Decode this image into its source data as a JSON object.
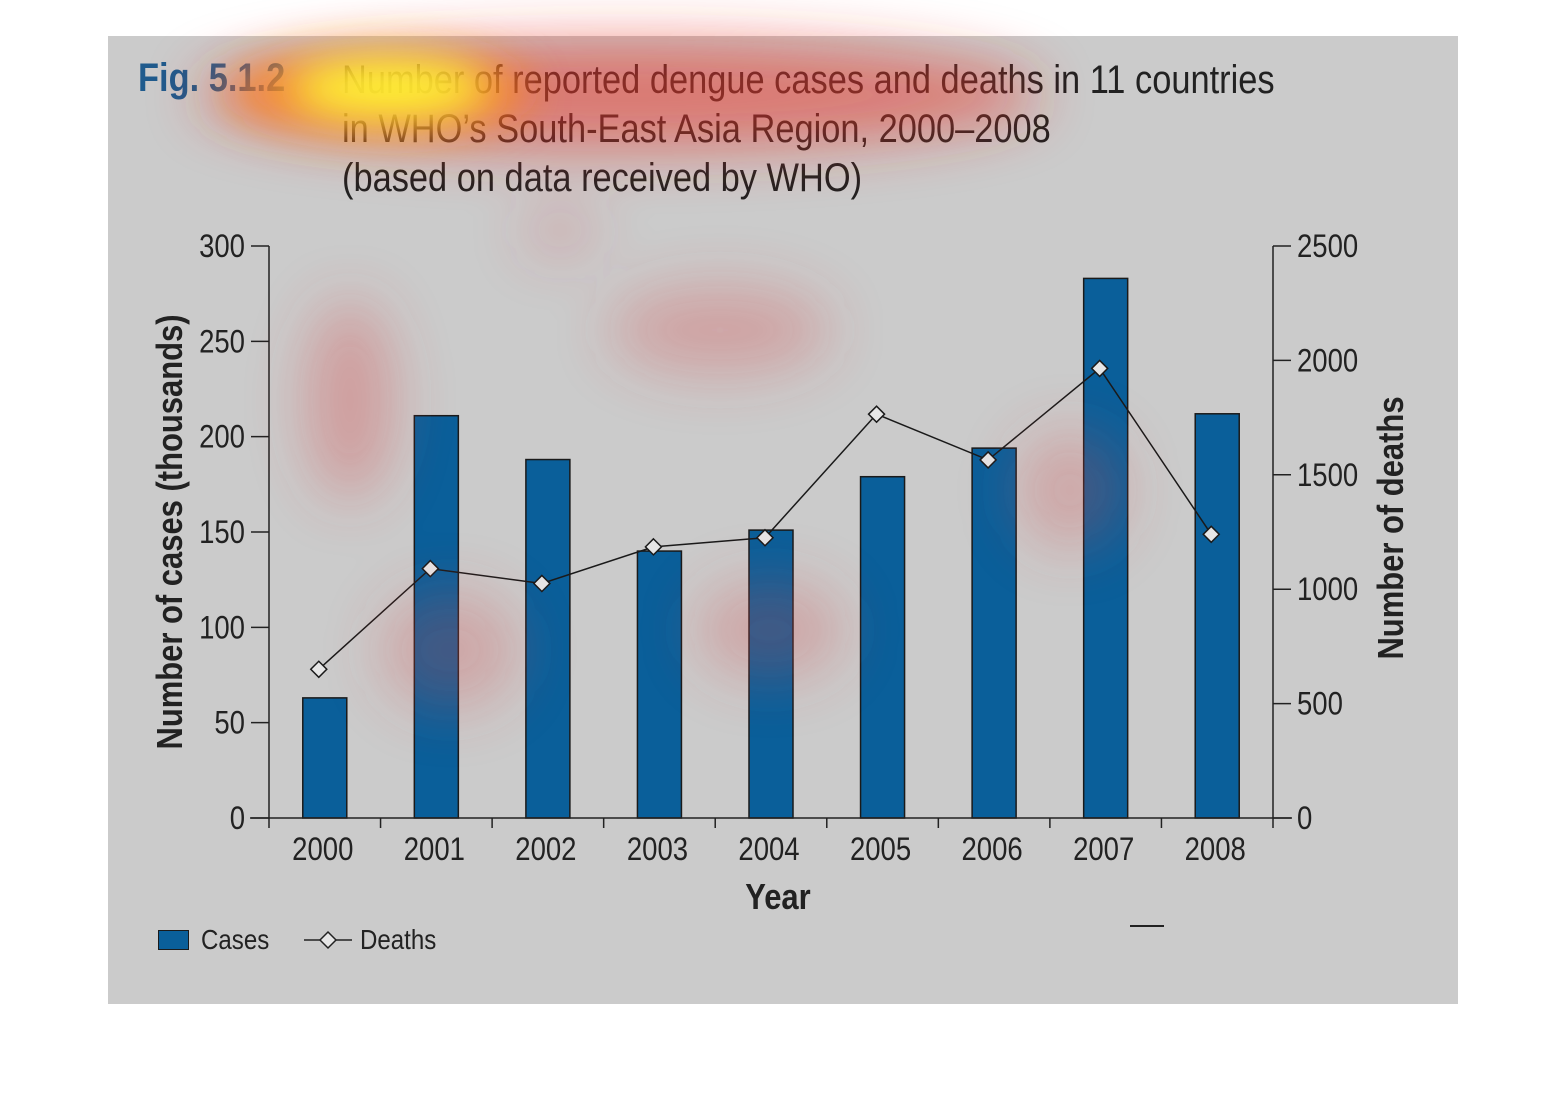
{
  "figure": {
    "label": "Fig. 5.1.2",
    "title_lines": [
      "Number of reported dengue cases and deaths in 11 countries",
      "in WHO’s South-East Asia Region, 2000–2008",
      "(based on data received by WHO)"
    ]
  },
  "legend": {
    "cases_label": "Cases",
    "deaths_label": "Deaths"
  },
  "colors": {
    "panel_background": "#cbcbcb",
    "bar_fill": "#0a5f9a",
    "figure_label": "#1f5b8d",
    "text": "#222222",
    "heatmap_hot": "#ffff33",
    "heatmap_warm": "#e8332b"
  },
  "chart_data": {
    "type": "bar",
    "title": "Number of reported dengue cases and deaths in 11 countries in WHO’s South-East Asia Region, 2000–2008 (based on data received by WHO)",
    "xlabel": "Year",
    "ylabel": "Number of cases (thousands)",
    "y2label": "Number of deaths",
    "categories": [
      "2000",
      "2001",
      "2002",
      "2003",
      "2004",
      "2005",
      "2006",
      "2007",
      "2008"
    ],
    "ylim": [
      0,
      300
    ],
    "y_ticks": [
      0,
      50,
      100,
      150,
      200,
      250,
      300
    ],
    "y2lim": [
      0,
      2500
    ],
    "y2_ticks": [
      0,
      500,
      1000,
      1500,
      2000,
      2500
    ],
    "grid": false,
    "legend_position": "bottom-left",
    "series": [
      {
        "name": "Cases",
        "type": "bar",
        "axis": "left",
        "values": [
          63,
          211,
          188,
          140,
          151,
          179,
          194,
          283,
          212
        ]
      },
      {
        "name": "Deaths",
        "type": "line",
        "marker": "diamond",
        "axis": "right",
        "values": [
          650,
          1090,
          1025,
          1185,
          1225,
          1765,
          1565,
          1965,
          1240
        ]
      }
    ]
  }
}
